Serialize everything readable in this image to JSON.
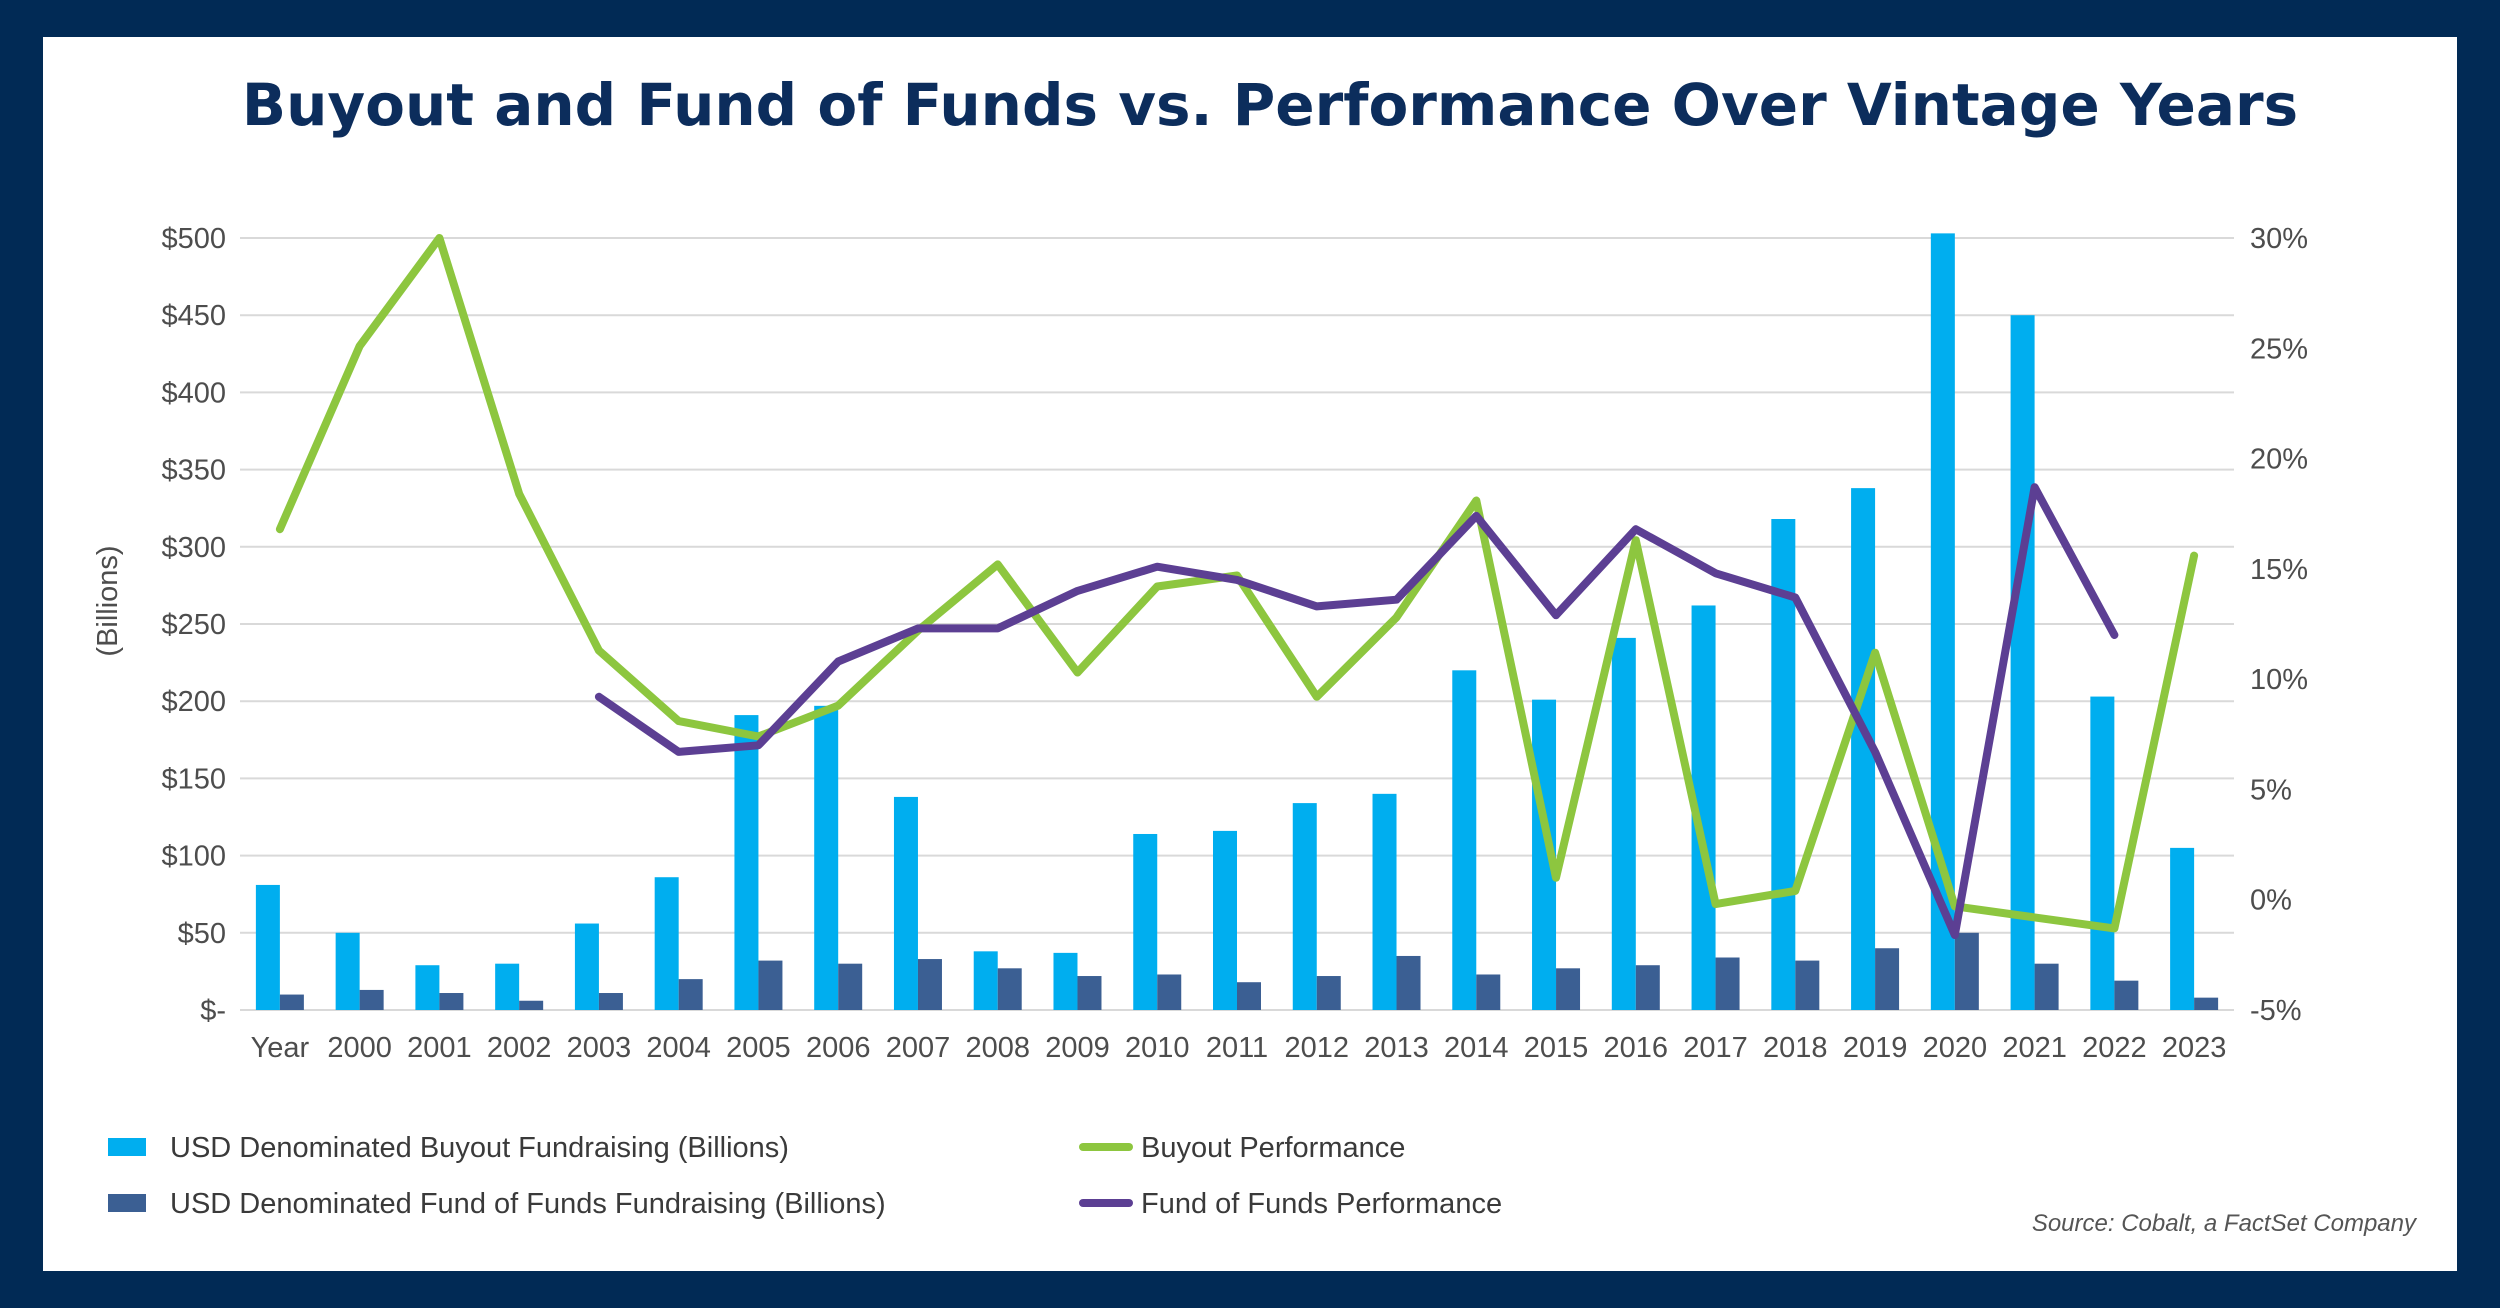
{
  "chart_data": {
    "type": "bar",
    "title": "Buyout and Fund of Funds vs. Performance Over Vintage Years",
    "ylabel": "(Billions)",
    "xlabel": "",
    "categories": [
      "Year",
      "2000",
      "2001",
      "2002",
      "2003",
      "2004",
      "2005",
      "2006",
      "2007",
      "2008",
      "2009",
      "2010",
      "2011",
      "2012",
      "2013",
      "2014",
      "2015",
      "2016",
      "2017",
      "2018",
      "2019",
      "2020",
      "2021",
      "2022",
      "2023"
    ],
    "ylim": [
      0,
      500
    ],
    "y2lim": [
      -5,
      30
    ],
    "y_ticks": [
      "$-",
      "$50",
      "$100",
      "$150",
      "$200",
      "$250",
      "$300",
      "$350",
      "$400",
      "$450",
      "$500"
    ],
    "y2_ticks": [
      "-5%",
      "0%",
      "5%",
      "10%",
      "15%",
      "20%",
      "25%",
      "30%"
    ],
    "series": [
      {
        "name": "USD Denominated Buyout Fundraising (Billions)",
        "type": "bar",
        "axis": "left",
        "color": "#00aeef",
        "values": [
          81,
          50,
          29,
          30,
          56,
          86,
          191,
          197,
          138,
          38,
          37,
          114,
          116,
          134,
          140,
          220,
          201,
          241,
          262,
          318,
          338,
          503,
          450,
          203,
          105
        ]
      },
      {
        "name": "USD Denominated Fund of Funds Fundraising (Billions)",
        "type": "bar",
        "axis": "left",
        "color": "#3b5f93",
        "values": [
          10,
          13,
          11,
          6,
          11,
          20,
          32,
          30,
          33,
          27,
          22,
          23,
          18,
          22,
          35,
          23,
          27,
          29,
          34,
          32,
          40,
          50,
          30,
          19,
          8
        ]
      },
      {
        "name": "Buyout Performance",
        "type": "line",
        "axis": "right",
        "color": "#8dc63f",
        "values": [
          16.8,
          25.1,
          30.0,
          18.4,
          11.3,
          8.1,
          7.4,
          8.8,
          12.2,
          15.2,
          10.3,
          14.2,
          14.7,
          9.2,
          12.8,
          18.1,
          1.0,
          16.3,
          -0.2,
          0.4,
          11.2,
          -0.3,
          -0.8,
          -1.3,
          15.6
        ]
      },
      {
        "name": "Fund of Funds Performance",
        "type": "line",
        "axis": "right",
        "color": "#5c3f93",
        "values": [
          null,
          null,
          null,
          null,
          9.2,
          6.7,
          7.0,
          10.8,
          12.3,
          12.3,
          14.0,
          15.1,
          14.5,
          13.3,
          13.6,
          17.4,
          12.9,
          16.8,
          14.8,
          13.7,
          6.7,
          -1.6,
          18.7,
          12.0,
          null
        ]
      }
    ],
    "legend": [
      {
        "label": "USD Denominated Buyout Fundraising (Billions)",
        "kind": "bar",
        "color": "#00aeef"
      },
      {
        "label": "Buyout Performance",
        "kind": "line",
        "color": "#8dc63f"
      },
      {
        "label": "USD Denominated Fund of Funds Fundraising (Billions)",
        "kind": "bar",
        "color": "#3b5f93"
      },
      {
        "label": "Fund of Funds Performance",
        "kind": "line",
        "color": "#5c3f93"
      }
    ],
    "source": "Source: Cobalt, a FactSet Company"
  }
}
